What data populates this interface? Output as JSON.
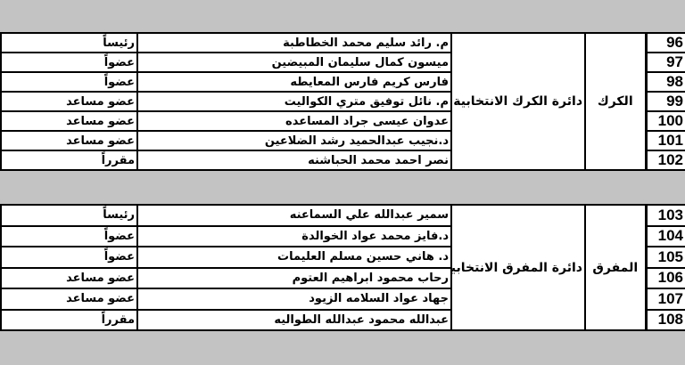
{
  "groups": [
    {
      "governorate": "الكرك",
      "district": "دائرة الكرك الانتخابية",
      "rows": [
        {
          "num": "96",
          "name": "م. رائد سليم محمد الخطاطبة",
          "role": "رئيساً"
        },
        {
          "num": "97",
          "name": "ميسون كمال سليمان المبيضين",
          "role": "عضواً"
        },
        {
          "num": "98",
          "name": "فارس كريم فارس المعايطه",
          "role": "عضواً"
        },
        {
          "num": "99",
          "name": "م. نائل توفيق متري الكواليت",
          "role": "عضو مساعد"
        },
        {
          "num": "100",
          "name": "عدوان عيسى جراد المساعده",
          "role": "عضو مساعد"
        },
        {
          "num": "101",
          "name": "د.نجيب عبدالحميد رشد الضلاعين",
          "role": "عضو مساعد"
        },
        {
          "num": "102",
          "name": "نصر احمد محمد الحباشنه",
          "role": "مقرراً"
        }
      ]
    },
    {
      "governorate": "المفرق",
      "district": "دائرة المفرق الانتخابية",
      "rows": [
        {
          "num": "103",
          "name": "سمير عبدالله علي السماعنه",
          "role": "رئيساً"
        },
        {
          "num": "104",
          "name": "د.فايز محمد عواد الخوالدة",
          "role": "عضواً"
        },
        {
          "num": "105",
          "name": "د. هاني حسين مسلم العليمات",
          "role": "عضواً"
        },
        {
          "num": "106",
          "name": "رحاب محمود ابراهيم العتوم",
          "role": "عضو  مساعد"
        },
        {
          "num": "107",
          "name": "جهاد عواد السلامه الزيود",
          "role": "عضو  مساعد"
        },
        {
          "num": "108",
          "name": "عبدالله محمود عبدالله الطواليه",
          "role": "مقرراً"
        }
      ]
    }
  ]
}
